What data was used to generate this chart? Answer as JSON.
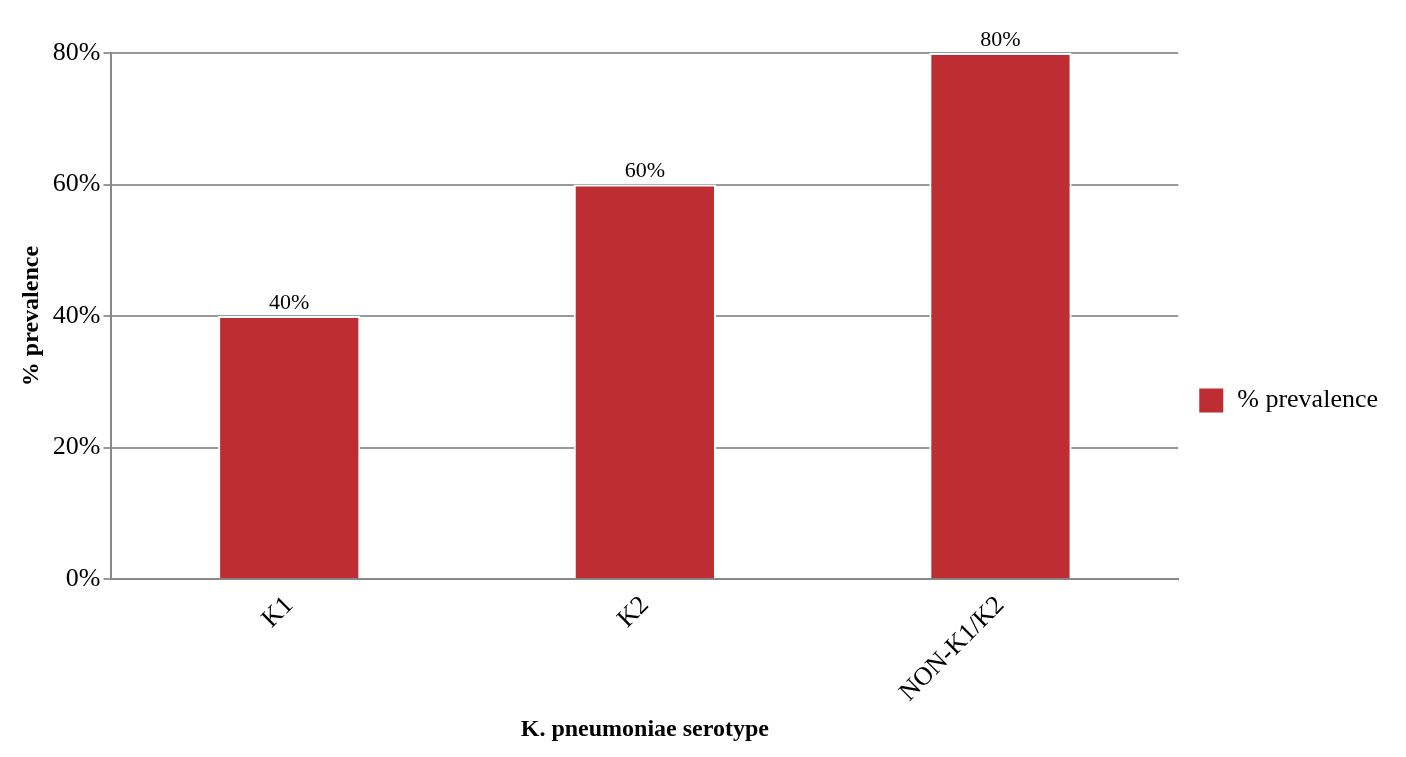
{
  "chart_data": {
    "type": "bar",
    "xlabel": "K. pneumoniae serotype",
    "ylabel": "% prevalence",
    "categories": [
      "K1",
      "K2",
      "NON-K1/K2"
    ],
    "series": [
      {
        "name": "% prevalence",
        "color": "#bd2d32",
        "values": [
          40,
          60,
          80
        ],
        "value_labels": [
          "40%",
          "60%",
          "80%"
        ]
      }
    ],
    "ylim": [
      0,
      80
    ],
    "yticks": [
      {
        "value": 0,
        "label": "0%"
      },
      {
        "value": 20,
        "label": "20%"
      },
      {
        "value": 40,
        "label": "40%"
      },
      {
        "value": 60,
        "label": "60%"
      },
      {
        "value": 80,
        "label": "80%"
      }
    ],
    "grid": "y",
    "legend": "right"
  }
}
